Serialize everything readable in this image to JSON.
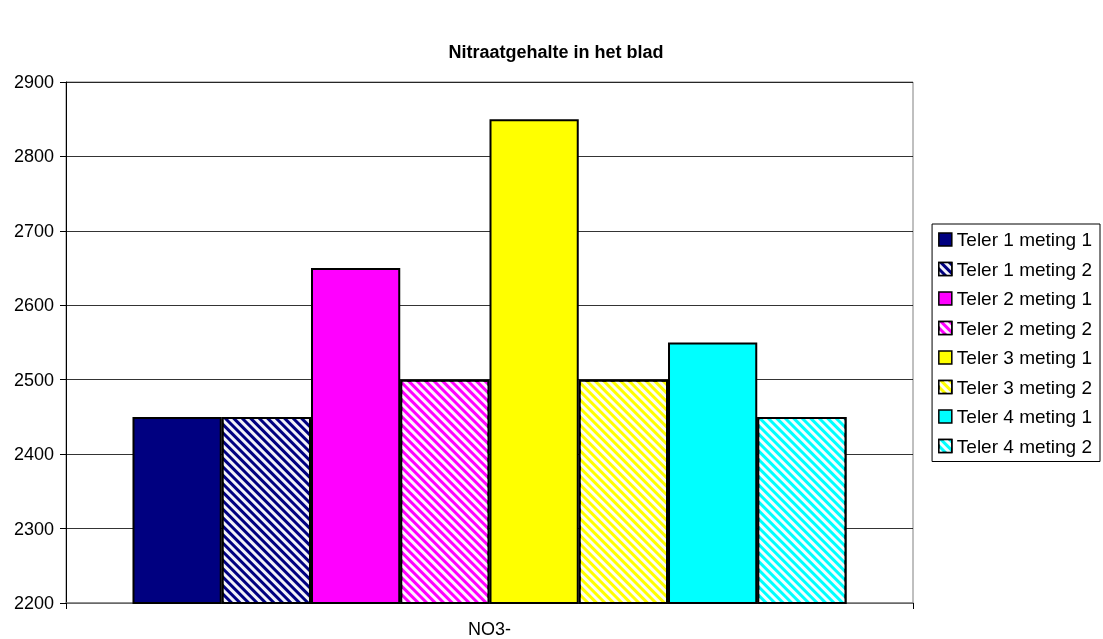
{
  "chart_data": {
    "type": "bar",
    "title": "Nitraatgehalte in het blad",
    "categories": [
      "NO3-"
    ],
    "series": [
      {
        "name": "Teler 1 meting 1",
        "color": "#000080",
        "values": [
          2450
        ]
      },
      {
        "name": "Teler 1 meting 2",
        "color": "#000080",
        "values": [
          2450
        ]
      },
      {
        "name": "Teler 2 meting 1",
        "color": "#ff00ff",
        "values": [
          2650
        ]
      },
      {
        "name": "Teler 2 meting 2",
        "color": "#ff00ff",
        "values": [
          2500
        ]
      },
      {
        "name": "Teler 3 meting 1",
        "color": "#ffff00",
        "values": [
          2850
        ]
      },
      {
        "name": "Teler 3 meting 2",
        "color": "#ffff00",
        "values": [
          2500
        ]
      },
      {
        "name": "Teler 4 meting 1",
        "color": "#00ffff",
        "values": [
          2550
        ]
      },
      {
        "name": "Teler 4 meting 2",
        "color": "#00ffff",
        "values": [
          2450
        ]
      }
    ],
    "ylim": [
      2200,
      2900
    ],
    "yticks": [
      2200,
      2300,
      2400,
      2500,
      2600,
      2700,
      2800,
      2900
    ],
    "grid": "y",
    "legend": "right"
  }
}
